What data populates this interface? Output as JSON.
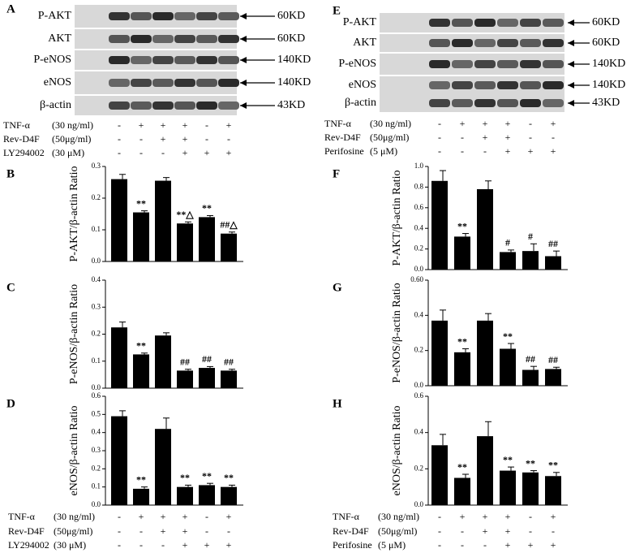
{
  "blots": [
    {
      "letter": "A",
      "rows": [
        {
          "protein": "P-AKT",
          "size": "60KD"
        },
        {
          "protein": "AKT",
          "size": "60KD"
        },
        {
          "protein": "P-eNOS",
          "size": "140KD"
        },
        {
          "protein": "eNOS",
          "size": "140KD"
        },
        {
          "protein": "β-actin",
          "size": "43KD"
        }
      ],
      "treatments": [
        {
          "agent": "TNF-α",
          "dose": "(30 ng/ml)",
          "signs": [
            "-",
            "+",
            "+",
            "+",
            "-",
            "+"
          ]
        },
        {
          "agent": "Rev-D4F",
          "dose": "(50μg/ml)",
          "signs": [
            "-",
            "-",
            "+",
            "+",
            "-",
            "-"
          ]
        },
        {
          "agent": "LY294002",
          "dose": "(30 μM)",
          "signs": [
            "-",
            "-",
            "-",
            "+",
            "+",
            "+"
          ]
        }
      ]
    },
    {
      "letter": "E",
      "rows": [
        {
          "protein": "P-AKT",
          "size": "60KD"
        },
        {
          "protein": "AKT",
          "size": "60KD"
        },
        {
          "protein": "P-eNOS",
          "size": "140KD"
        },
        {
          "protein": "eNOS",
          "size": "140KD"
        },
        {
          "protein": "β-actin",
          "size": "43KD"
        }
      ],
      "treatments": [
        {
          "agent": "TNF-α",
          "dose": "(30 ng/ml)",
          "signs": [
            "-",
            "+",
            "+",
            "+",
            "-",
            "+"
          ]
        },
        {
          "agent": "Rev-D4F",
          "dose": "(50μg/ml)",
          "signs": [
            "-",
            "-",
            "+",
            "+",
            "-",
            "-"
          ]
        },
        {
          "agent": "Perifosine",
          "dose": "(5 μM)",
          "signs": [
            "-",
            "-",
            "-",
            "+",
            "+",
            "+"
          ]
        }
      ]
    }
  ],
  "treatment_tables": [
    {
      "treatments": [
        {
          "agent": "TNF-α",
          "dose": "(30 ng/ml)",
          "signs": [
            "-",
            "+",
            "+",
            "+",
            "-",
            "+"
          ]
        },
        {
          "agent": "Rev-D4F",
          "dose": "(50μg/ml)",
          "signs": [
            "-",
            "-",
            "+",
            "+",
            "-",
            "-"
          ]
        },
        {
          "agent": "LY294002",
          "dose": "(30 μM)",
          "signs": [
            "-",
            "-",
            "-",
            "+",
            "+",
            "+"
          ]
        }
      ]
    },
    {
      "treatments": [
        {
          "agent": "TNF-α",
          "dose": "(30 ng/ml)",
          "signs": [
            "-",
            "+",
            "+",
            "+",
            "-",
            "+"
          ]
        },
        {
          "agent": "Rev-D4F",
          "dose": "(50μg/ml)",
          "signs": [
            "-",
            "-",
            "+",
            "+",
            "-",
            "-"
          ]
        },
        {
          "agent": "Perifosine",
          "dose": "(5 μM)",
          "signs": [
            "-",
            "-",
            "-",
            "+",
            "+",
            "+"
          ]
        }
      ]
    }
  ],
  "chart_data": [
    {
      "type": "bar",
      "letter": "B",
      "y_label": "P-AKT/β-actin Ratio",
      "color": "#000000",
      "values": [
        0.26,
        0.155,
        0.255,
        0.12,
        0.14,
        0.088
      ],
      "errors": [
        0.015,
        0.005,
        0.01,
        0.005,
        0.005,
        0.005
      ],
      "annotations": [
        null,
        "**",
        null,
        "**△",
        "**",
        "##△"
      ],
      "ylim": [
        0,
        0.3
      ],
      "yticks": [
        {
          "value": 0,
          "label": "0.0"
        },
        {
          "value": 0.1,
          "label": "0.1"
        },
        {
          "value": 0.2,
          "label": "0.2"
        },
        {
          "value": 0.3,
          "label": "0.3"
        }
      ]
    },
    {
      "type": "bar",
      "letter": "C",
      "y_label": "P-eNOS/β-actin Ratio",
      "color": "#000000",
      "values": [
        0.225,
        0.125,
        0.195,
        0.065,
        0.075,
        0.065
      ],
      "errors": [
        0.02,
        0.005,
        0.01,
        0.005,
        0.005,
        0.005
      ],
      "annotations": [
        null,
        "**",
        null,
        "##",
        "##",
        "##"
      ],
      "ylim": [
        0,
        0.4
      ],
      "yticks": [
        {
          "value": 0,
          "label": "0.0"
        },
        {
          "value": 0.1,
          "label": "0.1"
        },
        {
          "value": 0.2,
          "label": "0.2"
        },
        {
          "value": 0.3,
          "label": "0.3"
        },
        {
          "value": 0.4,
          "label": "0.4"
        }
      ]
    },
    {
      "type": "bar",
      "letter": "D",
      "y_label": "eNOS/β-actin Ratio",
      "color": "#000000",
      "values": [
        0.49,
        0.09,
        0.42,
        0.1,
        0.11,
        0.1
      ],
      "errors": [
        0.03,
        0.01,
        0.06,
        0.01,
        0.01,
        0.01
      ],
      "annotations": [
        null,
        "**",
        null,
        "**",
        "**",
        "**"
      ],
      "ylim": [
        0,
        0.6
      ],
      "yticks": [
        {
          "value": 0,
          "label": "0.0"
        },
        {
          "value": 0.1,
          "label": "0.1"
        },
        {
          "value": 0.2,
          "label": "0.2"
        },
        {
          "value": 0.3,
          "label": "0.3"
        },
        {
          "value": 0.4,
          "label": "0.4"
        },
        {
          "value": 0.5,
          "label": "0.5"
        },
        {
          "value": 0.6,
          "label": "0.6"
        }
      ]
    },
    {
      "type": "bar",
      "letter": "F",
      "y_label": "P-AKT/β-actin Ratio",
      "color": "#000000",
      "values": [
        0.86,
        0.32,
        0.78,
        0.17,
        0.18,
        0.13
      ],
      "errors": [
        0.1,
        0.03,
        0.08,
        0.02,
        0.07,
        0.05
      ],
      "annotations": [
        null,
        "**",
        null,
        "#",
        "#",
        "##"
      ],
      "ylim": [
        0,
        1.0
      ],
      "yticks": [
        {
          "value": 0,
          "label": "0.0"
        },
        {
          "value": 0.2,
          "label": "0.2"
        },
        {
          "value": 0.4,
          "label": "0.4"
        },
        {
          "value": 0.6,
          "label": "0.6"
        },
        {
          "value": 0.8,
          "label": "0.8"
        },
        {
          "value": 1,
          "label": "1.0"
        }
      ]
    },
    {
      "type": "bar",
      "letter": "G",
      "y_label": "P-eNOS/β-actin Ratio",
      "color": "#000000",
      "values": [
        0.37,
        0.19,
        0.37,
        0.21,
        0.09,
        0.095
      ],
      "errors": [
        0.06,
        0.02,
        0.04,
        0.03,
        0.02,
        0.01
      ],
      "annotations": [
        null,
        "**",
        null,
        "**",
        "##",
        "##"
      ],
      "ylim": [
        0,
        0.6
      ],
      "yticks": [
        {
          "value": 0,
          "label": "0.0"
        },
        {
          "value": 0.2,
          "label": "0.2"
        },
        {
          "value": 0.4,
          "label": "0.4"
        },
        {
          "value": 0.6,
          "label": "0.60"
        }
      ]
    },
    {
      "type": "bar",
      "letter": "H",
      "y_label": "eNOS/β-actin Ratio",
      "color": "#000000",
      "values": [
        0.33,
        0.15,
        0.38,
        0.19,
        0.18,
        0.16
      ],
      "errors": [
        0.06,
        0.02,
        0.08,
        0.02,
        0.01,
        0.02
      ],
      "annotations": [
        null,
        "**",
        null,
        "**",
        "**",
        "**"
      ],
      "ylim": [
        0,
        0.6
      ],
      "yticks": [
        {
          "value": 0,
          "label": "0.0"
        },
        {
          "value": 0.2,
          "label": "0.2"
        },
        {
          "value": 0.4,
          "label": "0.4"
        },
        {
          "value": 0.6,
          "label": "0.6"
        }
      ]
    }
  ]
}
